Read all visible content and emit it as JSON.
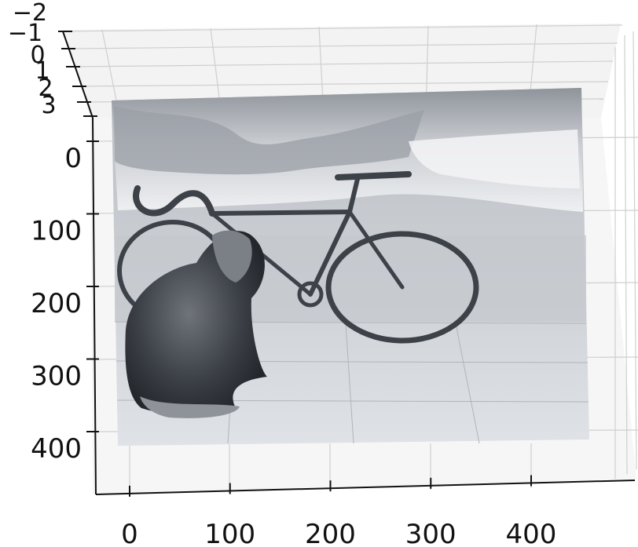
{
  "chart_data": {
    "type": "surface3d",
    "title": "",
    "xlabel": "",
    "ylabel": "",
    "zlabel": "",
    "colormap": "gray",
    "grid": true,
    "view": "top-down perspective (elevation ~80)",
    "x_ticks": [
      "0",
      "100",
      "200",
      "300",
      "400"
    ],
    "y_ticks": [
      "0",
      "100",
      "200",
      "300",
      "400"
    ],
    "z_ticks": [
      "−2",
      "−1",
      "0",
      "1",
      "2",
      "3"
    ],
    "xlim": [
      0,
      460
    ],
    "ylim": [
      0,
      420
    ],
    "zlim": [
      -2,
      3
    ],
    "surface_subject": "dog sitting in front of a bicycle on a wooden deck"
  },
  "colors": {
    "grid": "#c8c8c8",
    "axis": "#111111",
    "surface_light": "#e6e8eb",
    "surface_mid": "#a7abb1",
    "surface_dark": "#2b2e34"
  }
}
